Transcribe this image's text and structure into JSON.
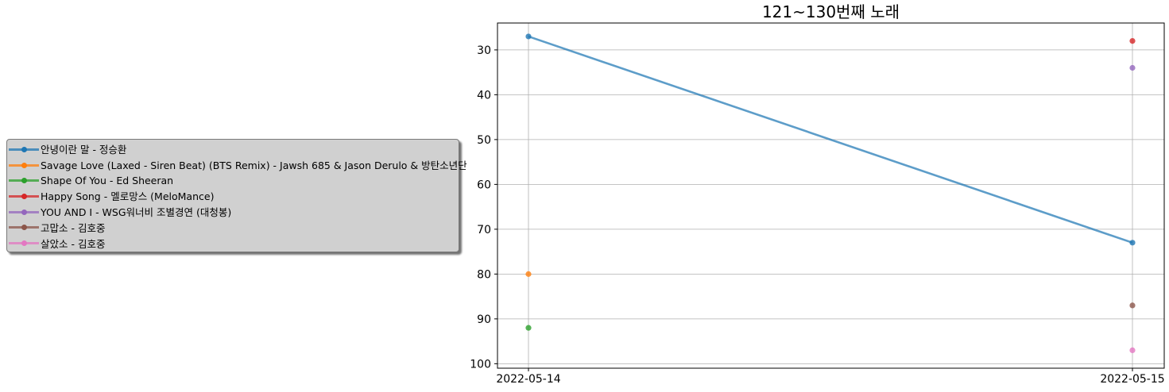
{
  "chart_data": {
    "type": "line",
    "title": "121~130번째 노래",
    "xlabel": "",
    "ylabel": "",
    "x": [
      "2022-05-14",
      "2022-05-15"
    ],
    "y_inverted": true,
    "ylim": [
      101,
      24
    ],
    "yticks": [
      30,
      40,
      50,
      60,
      70,
      80,
      90,
      100
    ],
    "grid": true,
    "legend_position": "left",
    "series": [
      {
        "name": "안녕이란 말 - 정승환",
        "color": "#1f77b4",
        "values": [
          27,
          73
        ]
      },
      {
        "name": "Savage Love (Laxed - Siren Beat) (BTS Remix) - Jawsh 685 & Jason Derulo & 방탄소년단",
        "color": "#ff7f0e",
        "values": [
          80,
          null
        ]
      },
      {
        "name": "Shape Of You - Ed Sheeran",
        "color": "#2ca02c",
        "values": [
          92,
          null
        ]
      },
      {
        "name": "Happy Song - 멜로망스 (MeloMance)",
        "color": "#d62728",
        "values": [
          null,
          28
        ]
      },
      {
        "name": "YOU AND I - WSG워너비 조별경연 (대청봉)",
        "color": "#9467bd",
        "values": [
          null,
          34
        ]
      },
      {
        "name": "고맙소 - 김호중",
        "color": "#8c564b",
        "values": [
          null,
          87
        ]
      },
      {
        "name": "살았소 - 김호중",
        "color": "#e377c2",
        "values": [
          null,
          97
        ]
      }
    ]
  }
}
